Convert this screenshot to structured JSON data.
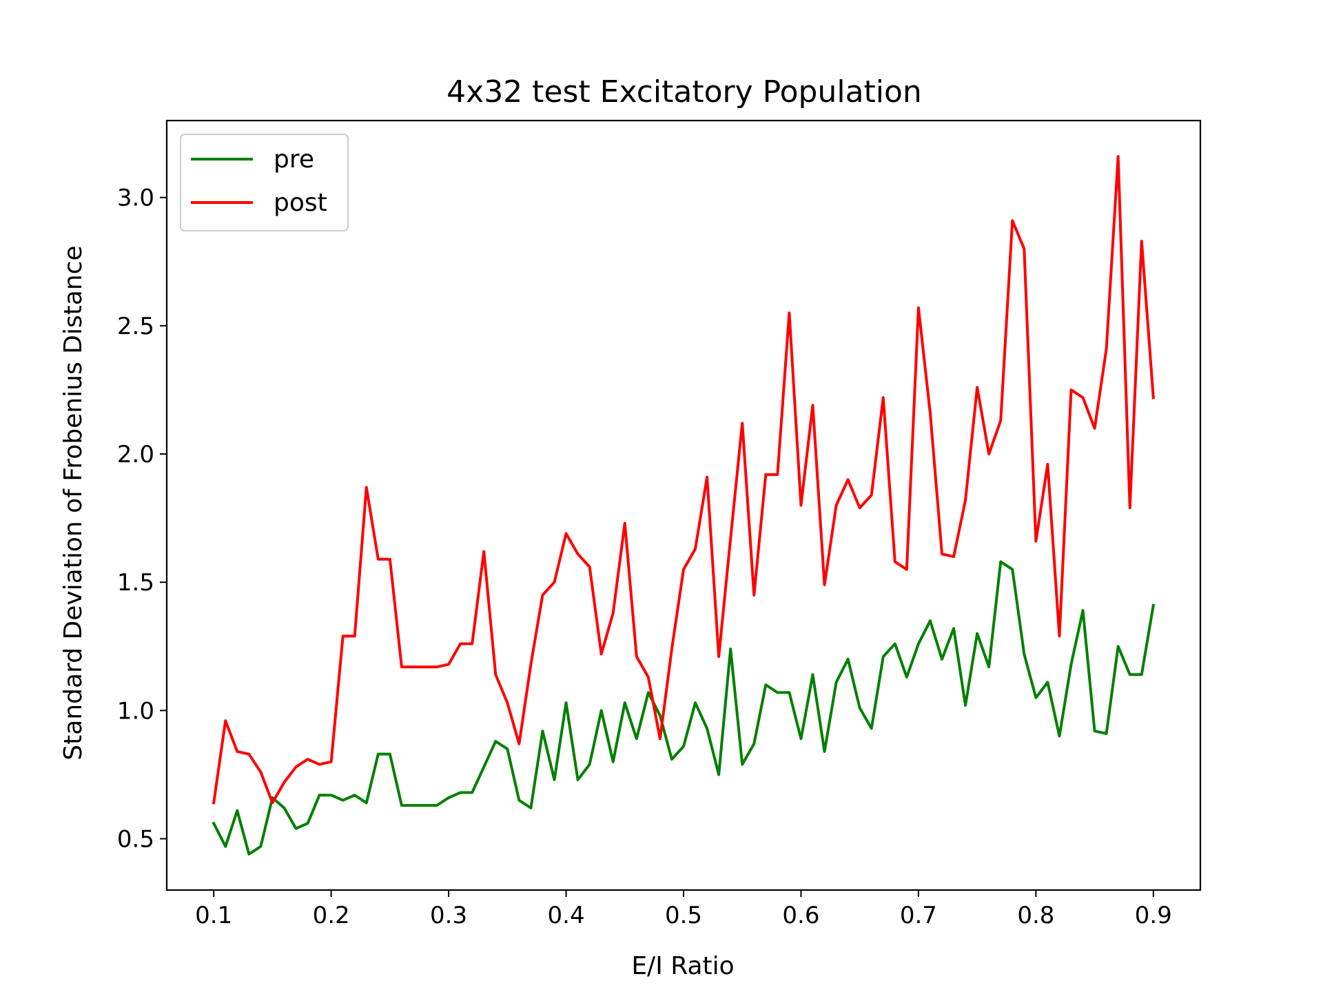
{
  "chart_data": {
    "type": "line",
    "title": "4x32 test Excitatory Population",
    "xlabel": "E/I Ratio",
    "ylabel": "Standard Deviation of Frobenius Distance",
    "xlim": [
      0.06,
      0.94
    ],
    "ylim": [
      0.3,
      3.3
    ],
    "xticks": [
      0.1,
      0.2,
      0.3,
      0.4,
      0.5,
      0.6,
      0.7,
      0.8,
      0.9
    ],
    "xtick_labels": [
      "0.1",
      "0.2",
      "0.3",
      "0.4",
      "0.5",
      "0.6",
      "0.7",
      "0.8",
      "0.9"
    ],
    "yticks": [
      0.5,
      1.0,
      1.5,
      2.0,
      2.5,
      3.0
    ],
    "ytick_labels": [
      "0.5",
      "1.0",
      "1.5",
      "2.0",
      "2.5",
      "3.0"
    ],
    "grid": false,
    "legend_position": "top-left",
    "x": [
      0.1,
      0.11,
      0.12,
      0.13,
      0.14,
      0.15,
      0.16,
      0.17,
      0.18,
      0.19,
      0.2,
      0.21,
      0.22,
      0.23,
      0.24,
      0.25,
      0.26,
      0.27,
      0.28,
      0.29,
      0.3,
      0.31,
      0.32,
      0.33,
      0.34,
      0.35,
      0.36,
      0.37,
      0.38,
      0.39,
      0.4,
      0.41,
      0.42,
      0.43,
      0.44,
      0.45,
      0.46,
      0.47,
      0.48,
      0.49,
      0.5,
      0.51,
      0.52,
      0.53,
      0.54,
      0.55,
      0.56,
      0.57,
      0.58,
      0.59,
      0.6,
      0.61,
      0.62,
      0.63,
      0.64,
      0.65,
      0.66,
      0.67,
      0.68,
      0.69,
      0.7,
      0.71,
      0.72,
      0.73,
      0.74,
      0.75,
      0.76,
      0.77,
      0.78,
      0.79,
      0.8,
      0.81,
      0.82,
      0.83,
      0.84,
      0.85,
      0.86,
      0.87,
      0.88,
      0.89,
      0.9
    ],
    "series": [
      {
        "name": "pre",
        "color": "#008000",
        "values": [
          0.56,
          0.47,
          0.61,
          0.44,
          0.47,
          0.66,
          0.62,
          0.54,
          0.56,
          0.67,
          0.67,
          0.65,
          0.67,
          0.64,
          0.83,
          0.83,
          0.63,
          0.63,
          0.63,
          0.63,
          0.66,
          0.68,
          0.68,
          0.78,
          0.88,
          0.85,
          0.65,
          0.62,
          0.92,
          0.73,
          1.03,
          0.73,
          0.79,
          1.0,
          0.8,
          1.03,
          0.89,
          1.07,
          0.98,
          0.81,
          0.86,
          1.03,
          0.93,
          0.75,
          1.24,
          0.79,
          0.87,
          1.1,
          1.07,
          1.07,
          0.89,
          1.14,
          0.84,
          1.11,
          1.2,
          1.01,
          0.93,
          1.21,
          1.26,
          1.13,
          1.26,
          1.35,
          1.2,
          1.32,
          1.02,
          1.3,
          1.17,
          1.58,
          1.55,
          1.22,
          1.05,
          1.11,
          0.9,
          1.18,
          1.39,
          0.92,
          0.91,
          1.25,
          1.14,
          1.14,
          1.41
        ]
      },
      {
        "name": "post",
        "color": "#ff0000",
        "values": [
          0.64,
          0.96,
          0.84,
          0.83,
          0.76,
          0.64,
          0.72,
          0.78,
          0.81,
          0.79,
          0.8,
          1.29,
          1.29,
          1.87,
          1.59,
          1.59,
          1.17,
          1.17,
          1.17,
          1.17,
          1.18,
          1.26,
          1.26,
          1.62,
          1.14,
          1.03,
          0.87,
          1.18,
          1.45,
          1.5,
          1.69,
          1.61,
          1.56,
          1.22,
          1.38,
          1.73,
          1.21,
          1.13,
          0.89,
          1.24,
          1.55,
          1.63,
          1.91,
          1.21,
          1.67,
          2.12,
          1.45,
          1.92,
          1.92,
          2.55,
          1.8,
          2.19,
          1.49,
          1.8,
          1.9,
          1.79,
          1.84,
          2.22,
          1.58,
          1.55,
          2.57,
          2.16,
          1.61,
          1.6,
          1.82,
          2.26,
          2.0,
          2.13,
          2.91,
          2.8,
          1.66,
          1.96,
          1.29,
          2.25,
          2.22,
          2.1,
          2.41,
          3.16,
          1.79,
          2.83,
          2.22
        ]
      }
    ]
  }
}
